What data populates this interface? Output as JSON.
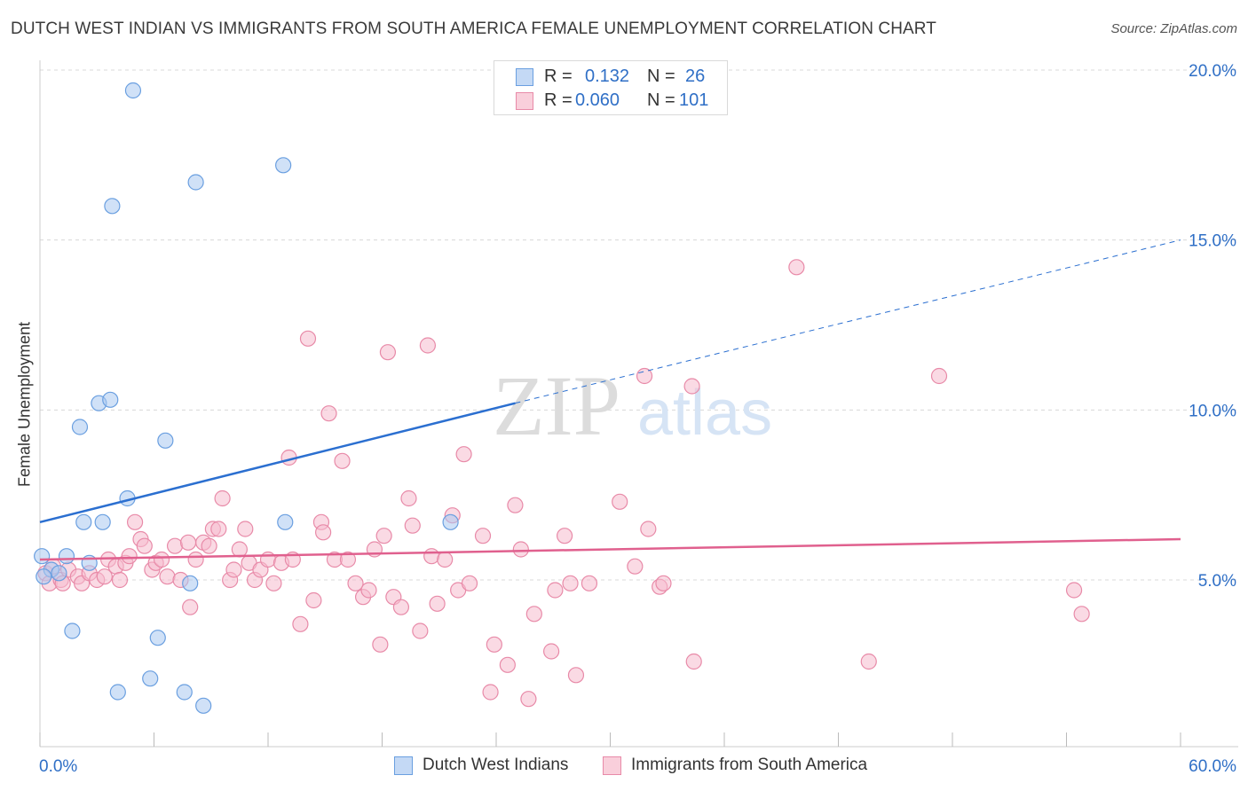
{
  "title": "DUTCH WEST INDIAN VS IMMIGRANTS FROM SOUTH AMERICA FEMALE UNEMPLOYMENT CORRELATION CHART",
  "source": "Source: ZipAtlas.com",
  "watermark": {
    "zip": "ZIP",
    "atlas": "atlas"
  },
  "legend": {
    "rows": [
      {
        "r_label": "R =",
        "r_value": "0.132",
        "n_label": "N =",
        "n_value": "26"
      },
      {
        "r_label": "R =",
        "r_value": "0.060",
        "n_label": "N =",
        "n_value": "101"
      }
    ]
  },
  "bottom_legend": [
    "Dutch West Indians",
    "Immigrants from South America"
  ],
  "colors": {
    "blue_fill": "#aac8f0",
    "blue_stroke": "#6a9fe0",
    "blue_line": "#2b6fd0",
    "pink_fill": "#f6bccd",
    "pink_stroke": "#e88aa8",
    "pink_line": "#e0608e",
    "axis_text": "#2f6fc6",
    "grid": "#d8d8d8"
  },
  "chart_data": {
    "type": "scatter",
    "title": "DUTCH WEST INDIAN VS IMMIGRANTS FROM SOUTH AMERICA FEMALE UNEMPLOYMENT CORRELATION CHART",
    "xlabel": "",
    "ylabel": "Female Unemployment",
    "xlim": [
      0,
      60
    ],
    "ylim": [
      0.5,
      20.8
    ],
    "x_tick_labels": [
      "0.0%",
      "60.0%"
    ],
    "y_ticks": [
      5,
      10,
      15,
      20
    ],
    "y_tick_labels": [
      "5.0%",
      "10.0%",
      "15.0%",
      "20.0%"
    ],
    "grid": true,
    "legend_position": "top-center",
    "series": [
      {
        "name": "Dutch West Indians",
        "color": "#aac8f0",
        "r": 0.132,
        "n": 26,
        "trend": {
          "x": [
            0,
            25
          ],
          "y": [
            6.7,
            10.2
          ],
          "dashed_to": {
            "x": 60,
            "y": 15.0
          }
        },
        "points": [
          [
            0.1,
            5.7
          ],
          [
            0.6,
            5.3
          ],
          [
            1.0,
            5.2
          ],
          [
            1.4,
            5.7
          ],
          [
            1.7,
            3.5
          ],
          [
            2.1,
            9.5
          ],
          [
            2.3,
            6.7
          ],
          [
            2.6,
            5.5
          ],
          [
            3.1,
            10.2
          ],
          [
            3.3,
            6.7
          ],
          [
            3.7,
            10.3
          ],
          [
            3.8,
            16.0
          ],
          [
            4.1,
            1.7
          ],
          [
            4.6,
            7.4
          ],
          [
            4.9,
            19.4
          ],
          [
            5.8,
            2.1
          ],
          [
            6.2,
            3.3
          ],
          [
            6.6,
            9.1
          ],
          [
            7.6,
            1.7
          ],
          [
            7.9,
            4.9
          ],
          [
            8.2,
            16.7
          ],
          [
            8.6,
            1.3
          ],
          [
            12.8,
            17.2
          ],
          [
            12.9,
            6.7
          ],
          [
            21.6,
            6.7
          ],
          [
            0.2,
            5.1
          ]
        ]
      },
      {
        "name": "Immigrants from South America",
        "color": "#f6bccd",
        "r": 0.06,
        "n": 101,
        "trend": {
          "x": [
            0,
            60
          ],
          "y": [
            5.6,
            6.2
          ]
        },
        "points": [
          [
            0.3,
            5.2
          ],
          [
            0.5,
            4.9
          ],
          [
            0.7,
            5.4
          ],
          [
            1.1,
            5.0
          ],
          [
            1.5,
            5.3
          ],
          [
            2.0,
            5.1
          ],
          [
            2.2,
            4.9
          ],
          [
            2.6,
            5.2
          ],
          [
            3.0,
            5.0
          ],
          [
            3.4,
            5.1
          ],
          [
            3.6,
            5.6
          ],
          [
            4.0,
            5.4
          ],
          [
            4.2,
            5.0
          ],
          [
            4.5,
            5.5
          ],
          [
            4.7,
            5.7
          ],
          [
            5.0,
            6.7
          ],
          [
            5.3,
            6.2
          ],
          [
            5.5,
            6.0
          ],
          [
            5.9,
            5.3
          ],
          [
            6.1,
            5.5
          ],
          [
            6.4,
            5.6
          ],
          [
            6.7,
            5.1
          ],
          [
            7.1,
            6.0
          ],
          [
            7.4,
            5.0
          ],
          [
            7.8,
            6.1
          ],
          [
            7.9,
            4.2
          ],
          [
            8.2,
            5.6
          ],
          [
            8.6,
            6.1
          ],
          [
            8.9,
            6.0
          ],
          [
            9.1,
            6.5
          ],
          [
            9.4,
            6.5
          ],
          [
            9.6,
            7.4
          ],
          [
            10.0,
            5.0
          ],
          [
            10.2,
            5.3
          ],
          [
            10.5,
            5.9
          ],
          [
            10.8,
            6.5
          ],
          [
            11.0,
            5.5
          ],
          [
            11.3,
            5.0
          ],
          [
            11.6,
            5.3
          ],
          [
            12.0,
            5.6
          ],
          [
            12.3,
            4.9
          ],
          [
            12.7,
            5.5
          ],
          [
            13.1,
            8.6
          ],
          [
            13.3,
            5.6
          ],
          [
            13.7,
            3.7
          ],
          [
            14.1,
            12.1
          ],
          [
            14.4,
            4.4
          ],
          [
            14.8,
            6.7
          ],
          [
            14.9,
            6.4
          ],
          [
            15.2,
            9.9
          ],
          [
            15.5,
            5.6
          ],
          [
            15.9,
            8.5
          ],
          [
            16.2,
            5.6
          ],
          [
            16.6,
            4.9
          ],
          [
            17.0,
            4.5
          ],
          [
            17.3,
            4.7
          ],
          [
            17.6,
            5.9
          ],
          [
            17.9,
            3.1
          ],
          [
            18.1,
            6.3
          ],
          [
            18.3,
            11.7
          ],
          [
            18.6,
            4.5
          ],
          [
            19.0,
            4.2
          ],
          [
            19.4,
            7.4
          ],
          [
            19.6,
            6.6
          ],
          [
            20.0,
            3.5
          ],
          [
            20.4,
            11.9
          ],
          [
            20.6,
            5.7
          ],
          [
            20.9,
            4.3
          ],
          [
            21.3,
            5.6
          ],
          [
            21.7,
            6.9
          ],
          [
            22.0,
            4.7
          ],
          [
            22.3,
            8.7
          ],
          [
            22.6,
            4.9
          ],
          [
            23.3,
            6.3
          ],
          [
            23.7,
            1.7
          ],
          [
            23.9,
            3.1
          ],
          [
            24.6,
            2.5
          ],
          [
            25.0,
            7.2
          ],
          [
            25.3,
            5.9
          ],
          [
            25.7,
            1.5
          ],
          [
            26.0,
            4.0
          ],
          [
            26.9,
            2.9
          ],
          [
            27.1,
            4.7
          ],
          [
            27.6,
            6.3
          ],
          [
            27.9,
            4.9
          ],
          [
            28.2,
            2.2
          ],
          [
            28.9,
            4.9
          ],
          [
            30.5,
            7.3
          ],
          [
            31.3,
            5.4
          ],
          [
            31.8,
            11.0
          ],
          [
            32.0,
            6.5
          ],
          [
            32.6,
            4.8
          ],
          [
            32.8,
            4.9
          ],
          [
            34.3,
            10.7
          ],
          [
            34.4,
            2.6
          ],
          [
            39.8,
            14.2
          ],
          [
            43.6,
            2.6
          ],
          [
            47.3,
            11.0
          ],
          [
            54.4,
            4.7
          ],
          [
            54.8,
            4.0
          ],
          [
            1.2,
            4.9
          ]
        ]
      }
    ]
  }
}
